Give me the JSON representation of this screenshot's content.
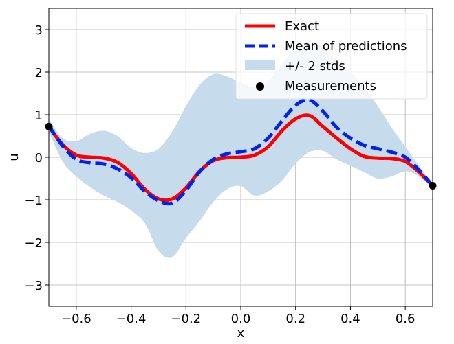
{
  "chart_data": {
    "type": "line",
    "xlabel": "x",
    "ylabel": "u",
    "xlim": [
      -0.7,
      0.7
    ],
    "ylim": [
      -3.5,
      3.5
    ],
    "grid": true,
    "legend_position": "top-right",
    "x_ticks": [
      -0.6,
      -0.4,
      -0.2,
      0.0,
      0.2,
      0.4,
      0.6
    ],
    "x_tick_labels": [
      "−0.6",
      "−0.4",
      "−0.2",
      "0.0",
      "0.2",
      "0.4",
      "0.6"
    ],
    "y_ticks": [
      3,
      2,
      1,
      0,
      -1,
      -2,
      -3
    ],
    "y_tick_labels": [
      "3",
      "2",
      "1",
      "0",
      "−1",
      "−2",
      "−3"
    ],
    "x": [
      -0.7,
      -0.65,
      -0.6,
      -0.55,
      -0.5,
      -0.45,
      -0.4,
      -0.35,
      -0.3,
      -0.25,
      -0.2,
      -0.15,
      -0.1,
      -0.05,
      0.0,
      0.05,
      0.1,
      0.15,
      0.2,
      0.25,
      0.3,
      0.35,
      0.4,
      0.45,
      0.5,
      0.55,
      0.6,
      0.65,
      0.7
    ],
    "series": [
      {
        "name": "Exact",
        "style": "solid",
        "color": "#ff0000",
        "values": [
          0.72,
          0.3,
          0.05,
          0.0,
          -0.02,
          -0.12,
          -0.38,
          -0.75,
          -0.98,
          -0.98,
          -0.72,
          -0.33,
          -0.08,
          -0.01,
          0.0,
          0.05,
          0.25,
          0.62,
          0.9,
          0.98,
          0.72,
          0.45,
          0.2,
          0.02,
          -0.02,
          -0.03,
          -0.1,
          -0.35,
          -0.67
        ]
      },
      {
        "name": "Mean of predictions",
        "style": "dashed",
        "color": "#0022ee",
        "values": [
          0.74,
          0.27,
          -0.05,
          -0.13,
          -0.16,
          -0.27,
          -0.48,
          -0.8,
          -1.02,
          -1.08,
          -0.78,
          -0.34,
          -0.05,
          0.08,
          0.13,
          0.2,
          0.45,
          0.85,
          1.22,
          1.35,
          1.08,
          0.7,
          0.45,
          0.28,
          0.2,
          0.12,
          0.0,
          -0.3,
          -0.67
        ]
      },
      {
        "name": "+/- 2 stds",
        "style": "band",
        "color": "#c6dcec",
        "upper": [
          0.9,
          0.45,
          0.38,
          0.55,
          0.62,
          0.5,
          0.22,
          0.1,
          0.2,
          0.6,
          1.2,
          1.7,
          1.95,
          1.9,
          1.75,
          1.65,
          1.8,
          2.2,
          2.55,
          2.72,
          2.6,
          2.3,
          2.0,
          1.65,
          1.2,
          0.7,
          0.25,
          -0.2,
          -0.62
        ],
        "lower": [
          0.6,
          -0.1,
          -0.45,
          -0.7,
          -0.9,
          -1.05,
          -1.25,
          -1.55,
          -2.2,
          -2.35,
          -1.9,
          -1.5,
          -1.05,
          -0.75,
          -0.68,
          -0.9,
          -0.8,
          -0.55,
          -0.15,
          0.12,
          0.15,
          -0.05,
          -0.2,
          -0.35,
          -0.5,
          -0.45,
          -0.33,
          -0.45,
          -0.72
        ]
      }
    ],
    "measurements": {
      "name": "Measurements",
      "color": "#000000",
      "points": [
        [
          -0.7,
          0.72
        ],
        [
          0.7,
          -0.67
        ]
      ]
    }
  }
}
